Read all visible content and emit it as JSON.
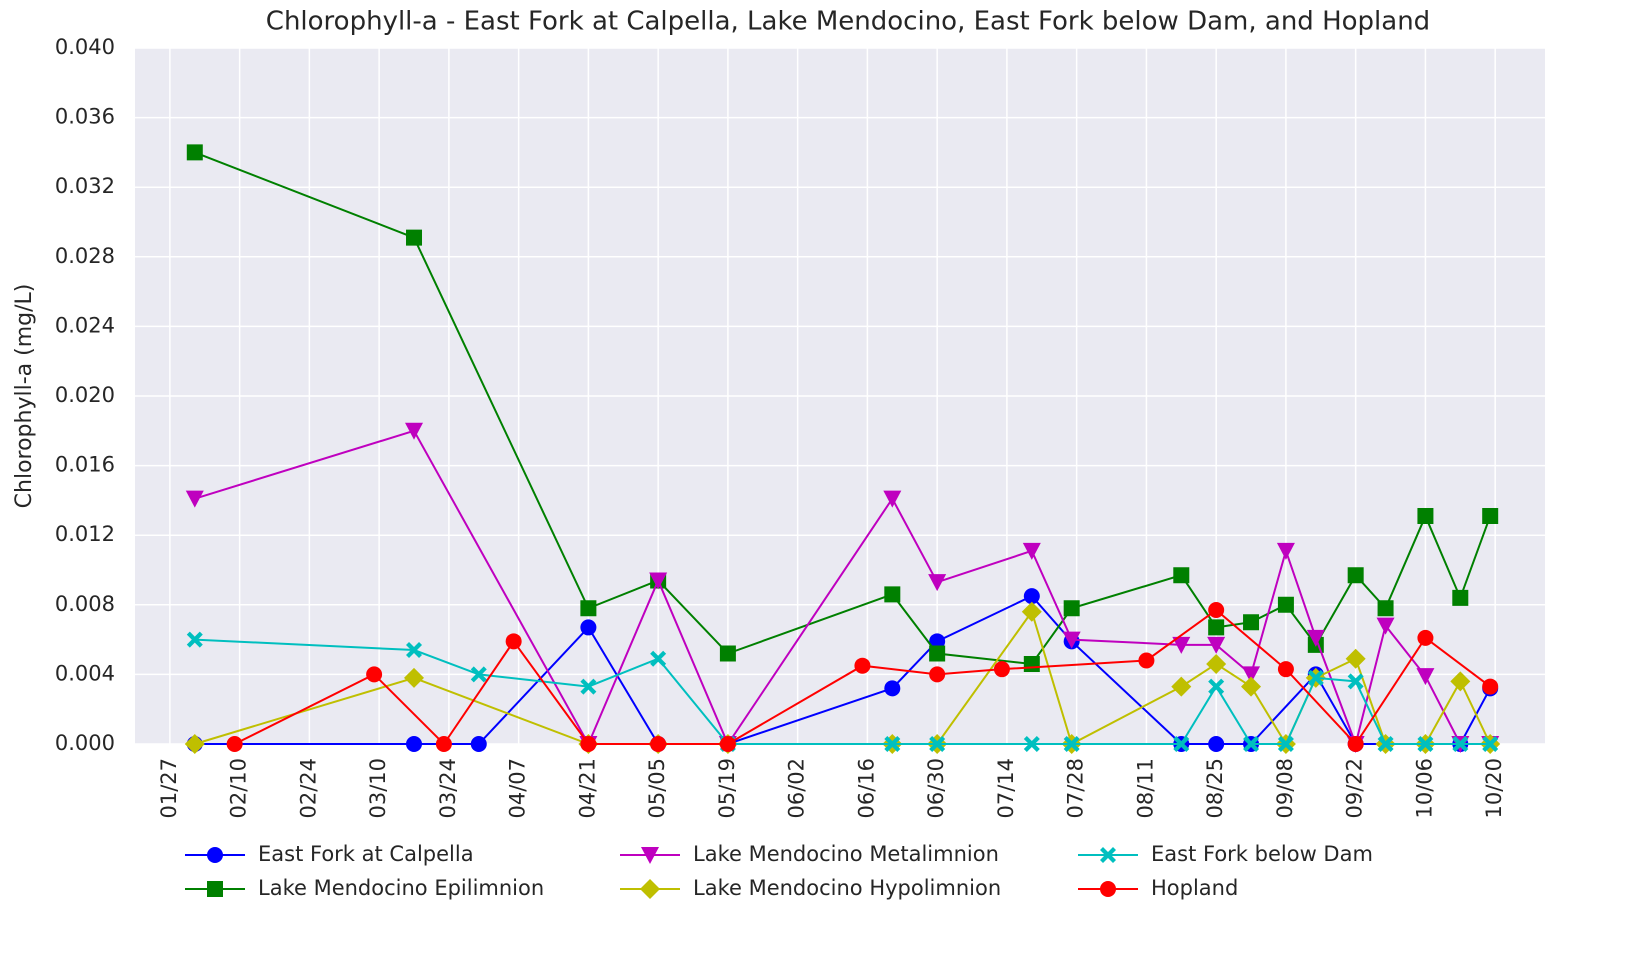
{
  "chart_data": {
    "type": "line",
    "title": "Chlorophyll-a - East Fork at Calpella, Lake Mendocino, East Fork below Dam, and Hopland",
    "y_label": "Chlorophyll-a (mg/L)",
    "xlim": [
      "01/20",
      "10/30"
    ],
    "xticks": [
      "01/27",
      "02/10",
      "02/24",
      "03/10",
      "03/24",
      "04/07",
      "04/21",
      "05/05",
      "05/19",
      "06/02",
      "06/16",
      "06/30",
      "07/14",
      "07/28",
      "08/11",
      "08/25",
      "09/08",
      "09/22",
      "10/06",
      "10/20"
    ],
    "ylim": [
      0,
      0.04
    ],
    "yticks": [
      {
        "value": 0,
        "label": "0.000"
      },
      {
        "value": 0.004,
        "label": "0.004"
      },
      {
        "value": 0.008,
        "label": "0.008"
      },
      {
        "value": 0.012,
        "label": "0.012"
      },
      {
        "value": 0.016,
        "label": "0.016"
      },
      {
        "value": 0.02,
        "label": "0.020"
      },
      {
        "value": 0.024,
        "label": "0.024"
      },
      {
        "value": 0.028,
        "label": "0.028"
      },
      {
        "value": 0.032,
        "label": "0.032"
      },
      {
        "value": 0.036,
        "label": "0.036"
      },
      {
        "value": 0.04,
        "label": "0.040"
      }
    ],
    "grid": true,
    "legend": "bottom",
    "series": [
      {
        "name": "East Fork at Calpella",
        "color": "#0000ff",
        "marker": "o",
        "x": [
          "02/01",
          "03/17",
          "03/30",
          "04/21",
          "05/05",
          "05/19",
          "06/21",
          "06/30",
          "07/19",
          "07/27",
          "08/18",
          "08/25",
          "09/01",
          "09/14",
          "09/22",
          "10/13",
          "10/19"
        ],
        "values": [
          0,
          0,
          0,
          0.0067,
          0,
          0,
          0.0032,
          0.0059,
          0.0085,
          0.0059,
          0,
          0,
          0,
          0.004,
          0,
          0,
          0.0032
        ]
      },
      {
        "name": "Lake Mendocino Epilimnion",
        "color": "#008000",
        "marker": "s",
        "x": [
          "02/01",
          "03/17",
          "04/21",
          "05/05",
          "05/19",
          "06/21",
          "06/30",
          "07/19",
          "07/27",
          "08/18",
          "08/25",
          "09/01",
          "09/08",
          "09/14",
          "09/22",
          "09/28",
          "10/06",
          "10/13",
          "10/19"
        ],
        "values": [
          0.034,
          0.0291,
          0.0078,
          0.0094,
          0.0052,
          0.0086,
          0.0052,
          0.0046,
          0.0078,
          0.0097,
          0.0067,
          0.007,
          0.008,
          0.0057,
          0.0097,
          0.0078,
          0.0131,
          0.0084,
          0.0131
        ]
      },
      {
        "name": "Lake Mendocino Metalimnion",
        "color": "#bf00bf",
        "marker": "v",
        "x": [
          "02/01",
          "03/17",
          "04/21",
          "05/05",
          "05/19",
          "06/21",
          "06/30",
          "07/19",
          "07/27",
          "08/18",
          "08/25",
          "09/01",
          "09/08",
          "09/14",
          "09/22",
          "09/28",
          "10/06",
          "10/13",
          "10/19"
        ],
        "values": [
          0.0141,
          0.018,
          0,
          0.0094,
          0,
          0.0141,
          0.0093,
          0.0111,
          0.006,
          0.0057,
          0.0057,
          0.004,
          0.0111,
          0.0061,
          0,
          0.0068,
          0.0039,
          0,
          0
        ]
      },
      {
        "name": "Lake Mendocino Hypolimnion",
        "color": "#bfbf00",
        "marker": "D",
        "x": [
          "02/01",
          "03/17",
          "04/21",
          "05/05",
          "05/19",
          "06/21",
          "06/30",
          "07/19",
          "07/27",
          "08/18",
          "08/25",
          "09/01",
          "09/08",
          "09/14",
          "09/22",
          "09/28",
          "10/06",
          "10/13",
          "10/19"
        ],
        "values": [
          0,
          0.0038,
          0,
          0,
          0,
          0,
          0,
          0.0076,
          0,
          0.0033,
          0.0046,
          0.0033,
          0,
          0.0038,
          0.0049,
          0,
          0,
          0.0036,
          0
        ]
      },
      {
        "name": "East Fork below Dam",
        "color": "#00bfbf",
        "marker": "X",
        "x": [
          "02/01",
          "03/17",
          "03/30",
          "04/21",
          "05/05",
          "05/19",
          "06/21",
          "06/30",
          "07/19",
          "07/27",
          "08/18",
          "08/25",
          "09/01",
          "09/08",
          "09/14",
          "09/22",
          "09/28",
          "10/06",
          "10/13",
          "10/19"
        ],
        "values": [
          0.006,
          0.0054,
          0.004,
          0.0033,
          0.0049,
          0,
          0,
          0,
          0,
          0,
          0,
          0.0033,
          0,
          0,
          0.0038,
          0.0036,
          0,
          0,
          0,
          0
        ]
      },
      {
        "name": "Hopland",
        "color": "#ff0000",
        "marker": "o",
        "x": [
          "02/09",
          "03/09",
          "03/23",
          "04/06",
          "04/21",
          "05/05",
          "05/19",
          "06/15",
          "06/30",
          "07/13",
          "08/11",
          "08/25",
          "09/08",
          "09/22",
          "10/06",
          "10/19"
        ],
        "values": [
          0,
          0.004,
          0,
          0.0059,
          0,
          0,
          0,
          0.0045,
          0.004,
          0.0043,
          0.0048,
          0.0077,
          0.0043,
          0,
          0.0061,
          0.0033
        ]
      }
    ]
  }
}
